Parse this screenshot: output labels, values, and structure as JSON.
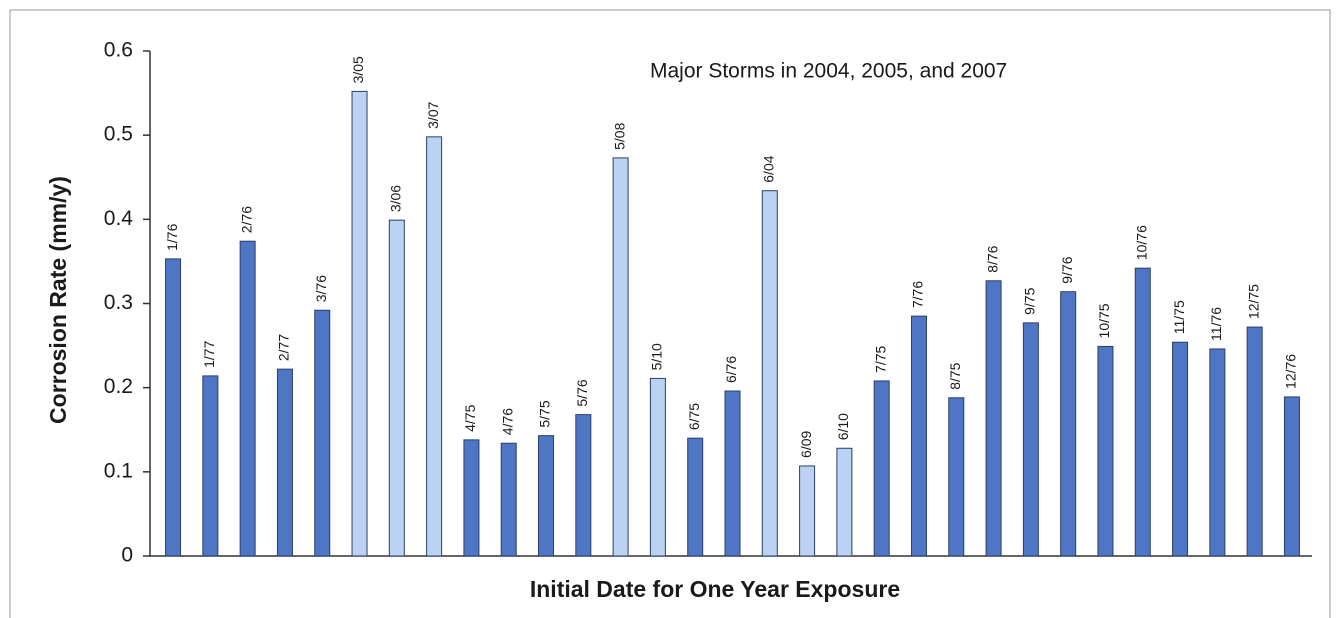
{
  "chart_data": {
    "type": "bar",
    "annotation": "Major Storms in 2004, 2005, and 2007",
    "x_label": "Initial Date for One Year Exposure",
    "y_label": "Corrosion Rate (mm/y)",
    "categories": [
      "1/76",
      "1/77",
      "2/76",
      "2/77",
      "3/76",
      "3/05",
      "3/06",
      "3/07",
      "4/75",
      "4/76",
      "5/75",
      "5/76",
      "5/08",
      "5/10",
      "6/75",
      "6/76",
      "6/04",
      "6/09",
      "6/10",
      "7/75",
      "7/76",
      "8/75",
      "8/76",
      "9/75",
      "9/76",
      "10/75",
      "10/76",
      "11/75",
      "11/76",
      "12/75",
      "12/76"
    ],
    "values": [
      0.353,
      0.214,
      0.374,
      0.222,
      0.292,
      0.552,
      0.399,
      0.498,
      0.138,
      0.134,
      0.143,
      0.168,
      0.473,
      0.211,
      0.14,
      0.196,
      0.434,
      0.107,
      0.128,
      0.208,
      0.285,
      0.188,
      0.327,
      0.277,
      0.314,
      0.249,
      0.342,
      0.254,
      0.246,
      0.272,
      0.189
    ],
    "colors": [
      "#4f76c4",
      "#4f76c4",
      "#4f76c4",
      "#4f76c4",
      "#4f76c4",
      "#bcd2f2",
      "#bcd2f2",
      "#bcd2f2",
      "#4f76c4",
      "#4f76c4",
      "#4f76c4",
      "#4f76c4",
      "#bcd2f2",
      "#bcd2f2",
      "#4f76c4",
      "#4f76c4",
      "#bcd2f2",
      "#bcd2f2",
      "#bcd2f2",
      "#4f76c4",
      "#4f76c4",
      "#4f76c4",
      "#4f76c4",
      "#4f76c4",
      "#4f76c4",
      "#4f76c4",
      "#4f76c4",
      "#4f76c4",
      "#4f76c4",
      "#4f76c4",
      "#4f76c4"
    ],
    "ylim": [
      0,
      0.6
    ],
    "yticks": [
      0,
      0.1,
      0.2,
      0.3,
      0.4,
      0.5,
      0.6
    ]
  }
}
